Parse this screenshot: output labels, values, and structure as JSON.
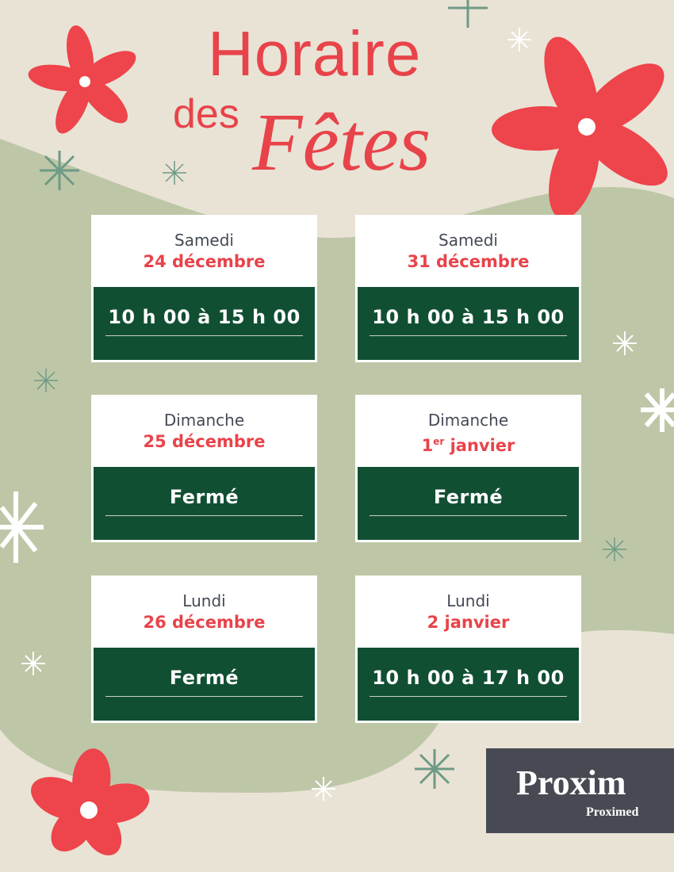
{
  "title": {
    "line1": "Horaire",
    "line2": "des",
    "line3": "Fêtes"
  },
  "colors": {
    "background": "#e9e3d5",
    "blob": "#bdc7a7",
    "accent_red": "#e8434a",
    "dark_green": "#114f33",
    "logo_bg": "#474a53",
    "logo_green": "#8dc63f"
  },
  "schedule": [
    {
      "day": "Samedi",
      "date": "24 décembre",
      "hours": "10 h 00 à 15 h 00"
    },
    {
      "day": "Samedi",
      "date": "31 décembre",
      "hours": "10 h 00 à 15 h 00"
    },
    {
      "day": "Dimanche",
      "date_num": "1",
      "date_sup": "er",
      "date_rest": " janvier",
      "hours": "Fermé"
    },
    {
      "day": "Dimanche",
      "date": "25 décembre",
      "hours": "Fermé"
    },
    {
      "day": "Lundi",
      "date": "26 décembre",
      "hours": "Fermé"
    },
    {
      "day": "Lundi",
      "date": "2 janvier",
      "hours": "10 h 00 à 17 h 00"
    }
  ],
  "logo": {
    "main": "Proxim",
    "sub": "Proximed"
  }
}
